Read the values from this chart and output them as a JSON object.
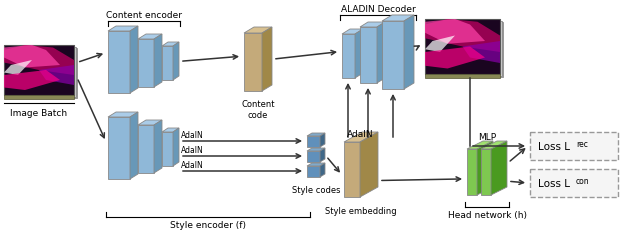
{
  "bg_color": "#ffffff",
  "title": "ALADIN Decoder",
  "content_encoder_label": "Content encoder",
  "style_encoder_label": "Style encoder (f)",
  "head_network_label": "Head network (h)",
  "image_batch_label": "Image Batch",
  "content_code_label": "Content\ncode",
  "style_codes_label": "Style codes",
  "style_embedding_label": "Style embedding",
  "mlp_label": "MLP",
  "adain_label": "AdaIN",
  "loss_rec_label": "Loss L",
  "loss_con_label": "Loss L",
  "rec_sub": "rec",
  "con_sub": "con",
  "blue_face": "#8FB8D8",
  "blue_top": "#AACCE8",
  "blue_side": "#6898B8",
  "blue_dark_face": "#6090BB",
  "blue_dark_top": "#80AACB",
  "blue_dark_side": "#406888",
  "tan_face": "#C4AA7A",
  "tan_top": "#D8C090",
  "tan_side": "#A08848",
  "green_face": "#7EC850",
  "green_top": "#A0E070",
  "green_side": "#4A9A20",
  "edge_color": "#888888",
  "arrow_color": "#333333"
}
